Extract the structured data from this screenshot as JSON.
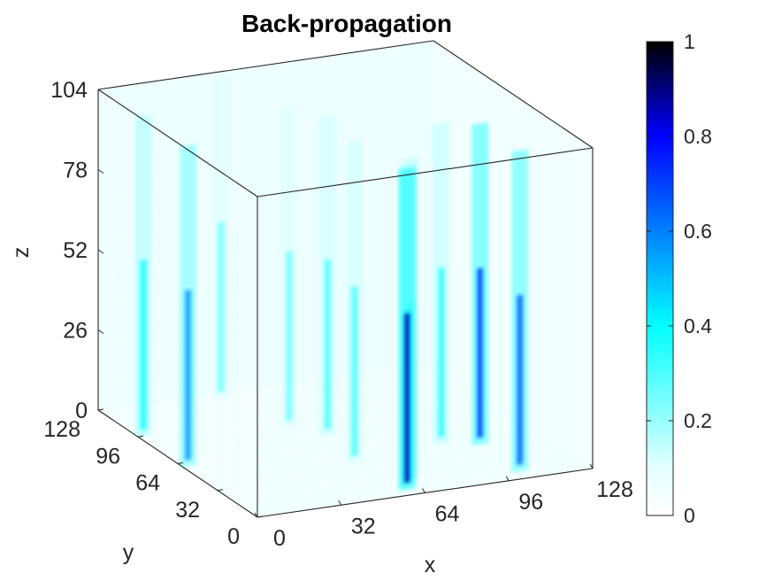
{
  "chart_data": {
    "type": "volume",
    "title": "Back-propagation",
    "xlabel": "x",
    "ylabel": "y",
    "zlabel": "z",
    "xlim": [
      0,
      128
    ],
    "ylim": [
      0,
      128
    ],
    "zlim": [
      0,
      104
    ],
    "xticks": [
      "0",
      "32",
      "64",
      "96",
      "128"
    ],
    "yticks": [
      "0",
      "32",
      "64",
      "96",
      "128"
    ],
    "zticks": [
      "0",
      "26",
      "52",
      "78",
      "104"
    ],
    "colorbar": {
      "range": [
        0,
        1
      ],
      "ticks": [
        "0",
        "0.2",
        "0.4",
        "0.6",
        "0.8",
        "1"
      ],
      "colormap": [
        "#ffffff",
        "#e6ffff",
        "#00ffff",
        "#0080ff",
        "#0000ff",
        "#000000"
      ]
    },
    "background_level": 0.1,
    "columns": [
      {
        "x": 60,
        "y": 6,
        "peak": 0.85
      },
      {
        "x": 62,
        "y": 10,
        "peak": 0.45
      },
      {
        "x": 66,
        "y": 16,
        "peak": 0.35
      },
      {
        "x": 104,
        "y": 8,
        "peak": 0.65
      },
      {
        "x": 104,
        "y": 40,
        "peak": 0.7
      },
      {
        "x": 92,
        "y": 46,
        "peak": 0.35
      },
      {
        "x": 56,
        "y": 40,
        "peak": 0.3
      },
      {
        "x": 60,
        "y": 70,
        "peak": 0.3
      },
      {
        "x": 52,
        "y": 84,
        "peak": 0.25
      },
      {
        "x": 2,
        "y": 60,
        "peak": 0.55
      },
      {
        "x": 2,
        "y": 96,
        "peak": 0.4
      },
      {
        "x": 44,
        "y": 122,
        "peak": 0.25
      }
    ]
  }
}
